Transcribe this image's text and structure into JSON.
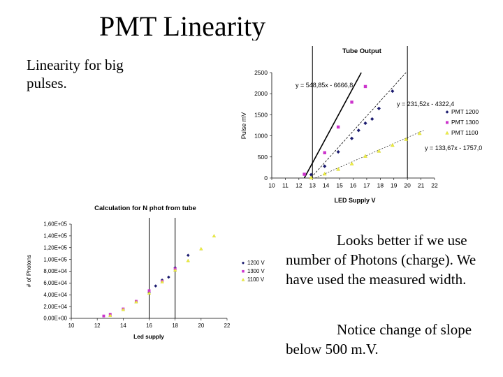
{
  "slide": {
    "title": "PMT Linearity",
    "subtitle": "Linearity for big pulses.",
    "paragraph1": "Looks better if we use number of Photons (charge). We have used the measured width.",
    "paragraph2": "Notice change of slope below 500 m.V."
  },
  "chart_data": [
    {
      "type": "scatter",
      "title": "Tube Output",
      "xlabel": "LED Supply V",
      "ylabel": "Pulse mV",
      "xlim": [
        10,
        22
      ],
      "ylim": [
        0,
        2500
      ],
      "xticks": [
        "10",
        "11",
        "12",
        "13",
        "14",
        "15",
        "16",
        "17",
        "18",
        "19",
        "20",
        "21",
        "22"
      ],
      "yticks": [
        "0",
        "500",
        "1000",
        "1500",
        "2000",
        "2500"
      ],
      "grid": false,
      "legend": "right",
      "vlines": [
        13,
        20
      ],
      "series": [
        {
          "name": "PMT 1200",
          "color": "#1a1a6e",
          "marker": "diamond",
          "x": [
            12.9,
            13.9,
            14.9,
            15.9,
            16.4,
            16.9,
            17.4,
            17.9,
            18.9
          ],
          "y": [
            80,
            280,
            620,
            940,
            1130,
            1300,
            1400,
            1650,
            2060
          ]
        },
        {
          "name": "PMT 1300",
          "color": "#cc33cc",
          "marker": "square",
          "x": [
            12.4,
            13.9,
            14.9,
            15.9,
            16.9
          ],
          "y": [
            90,
            600,
            1210,
            1800,
            2170
          ]
        },
        {
          "name": "PMT 1100",
          "color": "#eeee44",
          "marker": "triangle",
          "x": [
            12.9,
            13.9,
            14.9,
            15.9,
            16.9,
            17.9,
            18.9,
            19.9,
            20.9
          ],
          "y": [
            10,
            100,
            210,
            340,
            520,
            640,
            780,
            920,
            1060
          ]
        }
      ],
      "annotations": [
        "y = 548,85x - 6666,8",
        "y = 231,52x - 4322,4",
        "y = 133,67x - 1757,0"
      ]
    },
    {
      "type": "scatter",
      "title": "Calculation for N phot from tube",
      "xlabel": "Led supply",
      "ylabel": "# of Photons",
      "xlim": [
        10,
        22
      ],
      "ylim": [
        0,
        160000
      ],
      "xticks": [
        "10",
        "12",
        "14",
        "16",
        "18",
        "20",
        "22"
      ],
      "yticks": [
        "0,00E+00",
        "2,00E+04",
        "4,00E+04",
        "6,00E+04",
        "8,00E+04",
        "1,00E+05",
        "1,20E+05",
        "1,40E+05",
        "1,60E+05"
      ],
      "grid": false,
      "legend": "right",
      "vlines": [
        16,
        18
      ],
      "series": [
        {
          "name": "1200 V",
          "color": "#1a1a6e",
          "marker": "diamond",
          "x": [
            16,
            16.5,
            17,
            17.5,
            18,
            19
          ],
          "y": [
            44000,
            55000,
            65000,
            70000,
            86000,
            107000
          ]
        },
        {
          "name": "1300 V",
          "color": "#cc33cc",
          "marker": "square",
          "x": [
            12.5,
            13,
            14,
            15,
            16,
            17,
            18
          ],
          "y": [
            4000,
            7000,
            16000,
            29000,
            47000,
            63000,
            84000
          ]
        },
        {
          "name": "1100 V",
          "color": "#eeee44",
          "marker": "triangle",
          "x": [
            13,
            14,
            15,
            16,
            17,
            18,
            19,
            20,
            21
          ],
          "y": [
            5000,
            15000,
            28000,
            43000,
            62000,
            82000,
            98000,
            118000,
            140000
          ]
        }
      ]
    }
  ]
}
